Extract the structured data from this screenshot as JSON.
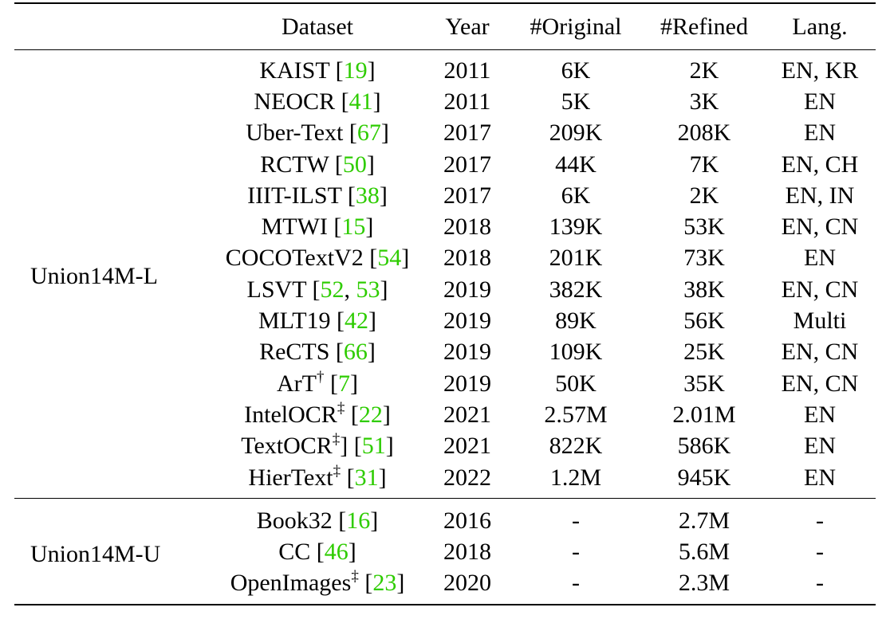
{
  "table": {
    "headers": [
      "Dataset",
      "Year",
      "#Original",
      "#Refined",
      "Lang."
    ],
    "groups": [
      {
        "name": "Union14M-L",
        "rows": [
          {
            "name": "KAIST",
            "sup": "",
            "mid": " [",
            "cites": [
              "19"
            ],
            "post": "]",
            "year": "2011",
            "original": "6K",
            "refined": "2K",
            "lang": "EN, KR"
          },
          {
            "name": "NEOCR",
            "sup": "",
            "mid": " [",
            "cites": [
              "41"
            ],
            "post": "]",
            "year": "2011",
            "original": "5K",
            "refined": "3K",
            "lang": "EN"
          },
          {
            "name": "Uber-Text",
            "sup": "",
            "mid": " [",
            "cites": [
              "67"
            ],
            "post": "]",
            "year": "2017",
            "original": "209K",
            "refined": "208K",
            "lang": "EN"
          },
          {
            "name": "RCTW",
            "sup": "",
            "mid": " [",
            "cites": [
              "50"
            ],
            "post": "]",
            "year": "2017",
            "original": "44K",
            "refined": "7K",
            "lang": "EN, CH"
          },
          {
            "name": "IIIT-ILST",
            "sup": "",
            "mid": " [",
            "cites": [
              "38"
            ],
            "post": "]",
            "year": "2017",
            "original": "6K",
            "refined": "2K",
            "lang": "EN, IN"
          },
          {
            "name": "MTWI",
            "sup": "",
            "mid": " [",
            "cites": [
              "15"
            ],
            "post": "]",
            "year": "2018",
            "original": "139K",
            "refined": "53K",
            "lang": "EN, CN"
          },
          {
            "name": "COCOTextV2",
            "sup": "",
            "mid": " [",
            "cites": [
              "54"
            ],
            "post": "]",
            "year": "2018",
            "original": "201K",
            "refined": "73K",
            "lang": "EN"
          },
          {
            "name": "LSVT",
            "sup": "",
            "mid": " [",
            "cites": [
              "52",
              "53"
            ],
            "post": "]",
            "year": "2019",
            "original": "382K",
            "refined": "38K",
            "lang": "EN, CN"
          },
          {
            "name": "MLT19",
            "sup": "",
            "mid": " [",
            "cites": [
              "42"
            ],
            "post": "]",
            "year": "2019",
            "original": "89K",
            "refined": "56K",
            "lang": "Multi"
          },
          {
            "name": "ReCTS",
            "sup": "",
            "mid": " [",
            "cites": [
              "66"
            ],
            "post": "]",
            "year": "2019",
            "original": "109K",
            "refined": "25K",
            "lang": "EN, CN"
          },
          {
            "name": "ArT",
            "sup": "†",
            "mid": " [",
            "cites": [
              "7"
            ],
            "post": "]",
            "year": "2019",
            "original": "50K",
            "refined": "35K",
            "lang": "EN, CN"
          },
          {
            "name": "IntelOCR",
            "sup": "‡",
            "mid": " [",
            "cites": [
              "22"
            ],
            "post": "]",
            "year": "2021",
            "original": "2.57M",
            "refined": "2.01M",
            "lang": "EN"
          },
          {
            "name": "TextOCR",
            "sup": "‡",
            "mid": "] [",
            "cites": [
              "51"
            ],
            "post": "]",
            "year": "2021",
            "original": "822K",
            "refined": "586K",
            "lang": "EN"
          },
          {
            "name": "HierText",
            "sup": "‡",
            "mid": " [",
            "cites": [
              "31"
            ],
            "post": "]",
            "year": "2022",
            "original": "1.2M",
            "refined": "945K",
            "lang": "EN"
          }
        ]
      },
      {
        "name": "Union14M-U",
        "rows": [
          {
            "name": "Book32",
            "sup": "",
            "mid": " [",
            "cites": [
              "16"
            ],
            "post": "]",
            "year": "2016",
            "original": "-",
            "refined": "2.7M",
            "lang": "-"
          },
          {
            "name": "CC",
            "sup": "",
            "mid": " [",
            "cites": [
              "46"
            ],
            "post": "]",
            "year": "2018",
            "original": "-",
            "refined": "5.6M",
            "lang": "-"
          },
          {
            "name": "OpenImages",
            "sup": "‡",
            "mid": " [",
            "cites": [
              "23"
            ],
            "post": "]",
            "year": "2020",
            "original": "-",
            "refined": "2.3M",
            "lang": "-"
          }
        ]
      }
    ]
  },
  "colors": {
    "citation": "#2ecc00",
    "text": "#000000",
    "rule": "#000000"
  }
}
